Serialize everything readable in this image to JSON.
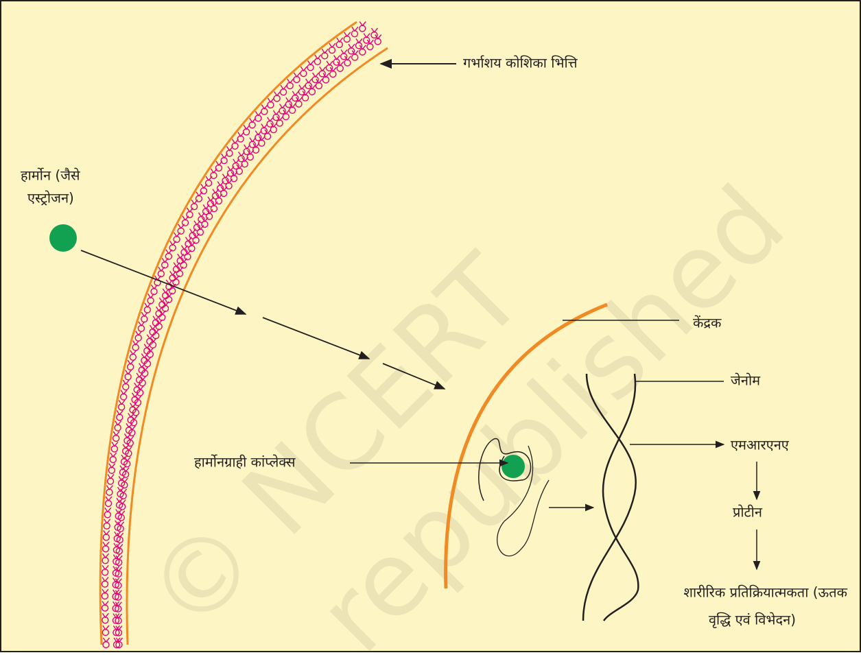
{
  "labels": {
    "wall": "गर्भाशय कोशिका भित्ति",
    "hormone_line1": "हार्मोन (जैसे",
    "hormone_line2": "एस्ट्रोजन)",
    "nucleus": "केंद्रक",
    "genome": "जेनोम",
    "mrna": "एमआरएनए",
    "protein": "प्रोटीन",
    "complex": "हार्मोनग्राही कांप्लेक्स",
    "response_line1": "शारीरिक प्रतिक्रियात्मकता (ऊतक",
    "response_line2": "वृद्धि एवं विभेदन)"
  },
  "watermark": {
    "line1": "© NCERT",
    "line2": "republished"
  }
}
